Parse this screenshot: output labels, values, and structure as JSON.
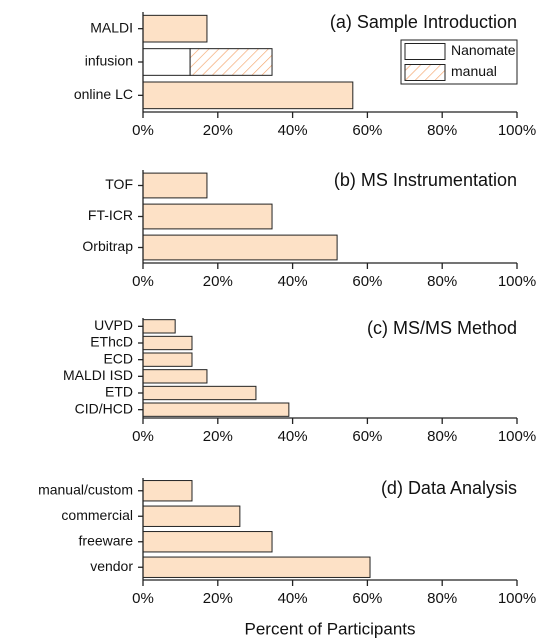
{
  "chart_data": [
    {
      "type": "bar",
      "title": "(a) Sample Introduction",
      "categories": [
        "MALDI",
        "infusion",
        "online LC"
      ],
      "values": [
        17.1,
        null,
        56.1
      ],
      "color": "#fde1c6",
      "series": [
        {
          "name": "Nanomate",
          "color": "#ffffff",
          "values": [
            null,
            12.6,
            null
          ]
        },
        {
          "name": "manual",
          "color": "#f4a46a",
          "hatch": true,
          "values": [
            null,
            21.9,
            null
          ]
        }
      ],
      "xlim": [
        0,
        100
      ],
      "xticks": [
        {
          "value": 0,
          "label": "0%"
        },
        {
          "value": 20,
          "label": "20%"
        },
        {
          "value": 40,
          "label": "40%"
        },
        {
          "value": 60,
          "label": "60%"
        },
        {
          "value": 80,
          "label": "80%"
        },
        {
          "value": 100,
          "label": "100%"
        }
      ]
    },
    {
      "type": "bar",
      "title": "(b) MS Instrumentation",
      "categories": [
        "TOF",
        "FT-ICR",
        "Orbitrap"
      ],
      "values": [
        17.1,
        34.5,
        51.9
      ],
      "color": "#fde1c6",
      "xlim": [
        0,
        100
      ],
      "xticks": [
        {
          "value": 0,
          "label": "0%"
        },
        {
          "value": 20,
          "label": "20%"
        },
        {
          "value": 40,
          "label": "40%"
        },
        {
          "value": 60,
          "label": "60%"
        },
        {
          "value": 80,
          "label": "80%"
        },
        {
          "value": 100,
          "label": "100%"
        }
      ]
    },
    {
      "type": "bar",
      "title": "(c) MS/MS Method",
      "categories": [
        "UVPD",
        "EThcD",
        "ECD",
        "MALDI ISD",
        "ETD",
        "CID/HCD"
      ],
      "values": [
        8.6,
        13.1,
        13.1,
        17.1,
        30.2,
        39.0
      ],
      "color": "#fde1c6",
      "xlim": [
        0,
        100
      ],
      "xticks": [
        {
          "value": 0,
          "label": "0%"
        },
        {
          "value": 20,
          "label": "20%"
        },
        {
          "value": 40,
          "label": "40%"
        },
        {
          "value": 60,
          "label": "60%"
        },
        {
          "value": 80,
          "label": "80%"
        },
        {
          "value": 100,
          "label": "100%"
        }
      ]
    },
    {
      "type": "bar",
      "title": "(d) Data Analysis",
      "categories": [
        "manual/custom",
        "commercial",
        "freeware",
        "vendor"
      ],
      "values": [
        13.1,
        25.9,
        34.5,
        60.7
      ],
      "color": "#fde1c6",
      "xlim": [
        0,
        100
      ],
      "xticks": [
        {
          "value": 0,
          "label": "0%"
        },
        {
          "value": 20,
          "label": "20%"
        },
        {
          "value": 40,
          "label": "40%"
        },
        {
          "value": 60,
          "label": "60%"
        },
        {
          "value": 80,
          "label": "80%"
        },
        {
          "value": 100,
          "label": "100%"
        }
      ],
      "xlabel": "Percent of Participants"
    }
  ]
}
